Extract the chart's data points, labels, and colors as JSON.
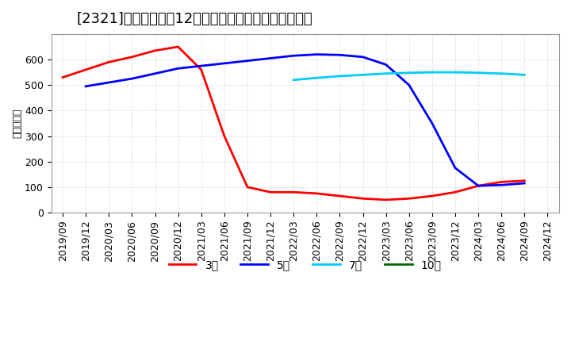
{
  "title": "[2321]　当期純利益12か月移動合計の標準偏差の推移",
  "ylabel": "（百万円）",
  "background_color": "#ffffff",
  "plot_bg_color": "#ffffff",
  "grid_color": "#cccccc",
  "ylim": [
    0,
    700
  ],
  "yticks": [
    0,
    100,
    200,
    300,
    400,
    500,
    600
  ],
  "series": {
    "3年": {
      "color": "#ff0000",
      "x": [
        "2019/09",
        "2019/12",
        "2020/03",
        "2020/06",
        "2020/09",
        "2020/12",
        "2021/03",
        "2021/06",
        "2021/09",
        "2021/12",
        "2022/03",
        "2022/06",
        "2022/09",
        "2022/12",
        "2023/03",
        "2023/06",
        "2023/09",
        "2023/12",
        "2024/03",
        "2024/06",
        "2024/09"
      ],
      "y": [
        530,
        560,
        590,
        610,
        635,
        650,
        560,
        300,
        100,
        80,
        80,
        75,
        65,
        55,
        50,
        55,
        65,
        80,
        105,
        120,
        125
      ]
    },
    "5年": {
      "color": "#0000ff",
      "x": [
        "2019/09",
        "2019/12",
        "2020/03",
        "2020/06",
        "2020/09",
        "2020/12",
        "2021/03",
        "2021/06",
        "2021/09",
        "2021/12",
        "2022/03",
        "2022/06",
        "2022/09",
        "2022/12",
        "2023/03",
        "2023/06",
        "2023/09",
        "2023/12",
        "2024/03",
        "2024/06",
        "2024/09"
      ],
      "y": [
        null,
        495,
        510,
        525,
        545,
        565,
        575,
        585,
        595,
        605,
        615,
        620,
        618,
        610,
        580,
        500,
        350,
        175,
        105,
        108,
        115
      ]
    },
    "7年": {
      "color": "#00ccff",
      "x": [
        "2022/03",
        "2022/06",
        "2022/09",
        "2022/12",
        "2023/03",
        "2023/06",
        "2023/09",
        "2023/12",
        "2024/03",
        "2024/06",
        "2024/09"
      ],
      "y": [
        520,
        528,
        535,
        540,
        545,
        548,
        550,
        550,
        548,
        545,
        540
      ]
    },
    "10年": {
      "color": "#006600",
      "x": [],
      "y": []
    }
  },
  "xtick_labels": [
    "2019/09",
    "2019/12",
    "2020/03",
    "2020/06",
    "2020/09",
    "2020/12",
    "2021/03",
    "2021/06",
    "2021/09",
    "2021/12",
    "2022/03",
    "2022/06",
    "2022/09",
    "2022/12",
    "2023/03",
    "2023/06",
    "2023/09",
    "2023/12",
    "2024/03",
    "2024/06",
    "2024/09",
    "2024/12"
  ],
  "legend": [
    "3年",
    "5年",
    "7年",
    "10年"
  ],
  "legend_colors": [
    "#ff0000",
    "#0000ff",
    "#00ccff",
    "#006600"
  ],
  "title_fontsize": 13,
  "axis_fontsize": 9,
  "legend_fontsize": 10
}
